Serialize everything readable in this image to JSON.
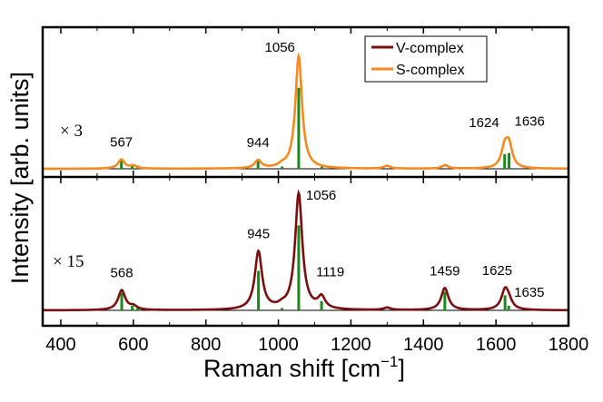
{
  "chart_data": {
    "type": "line",
    "xlabel_main": "Raman shift [cm",
    "xlabel_sup": "−1",
    "xlabel_close": "]",
    "ylabel": "Intensity [arb. units]",
    "xlim": [
      350,
      1800
    ],
    "x_ticks": [
      "400",
      "600",
      "800",
      "1000",
      "1200",
      "1400",
      "1600",
      "1800"
    ],
    "legend": {
      "position": "top-right",
      "entries": [
        {
          "name": "V-complex",
          "color": "#7b0f0f"
        },
        {
          "name": "S-complex",
          "color": "#f7891f"
        }
      ]
    },
    "stick_color": "#1a8a1a",
    "panels": [
      {
        "name": "S-complex",
        "color": "#f7891f",
        "scale_label": "× 3",
        "width": 11,
        "peaks": [
          {
            "x": 567,
            "height": 0.08
          },
          {
            "x": 600,
            "height": 0.025
          },
          {
            "x": 944,
            "height": 0.07
          },
          {
            "x": 1010,
            "height": 0.02
          },
          {
            "x": 1056,
            "height": 1.0
          },
          {
            "x": 1300,
            "height": 0.025
          },
          {
            "x": 1460,
            "height": 0.03
          },
          {
            "x": 1624,
            "height": 0.17
          },
          {
            "x": 1636,
            "height": 0.19
          }
        ],
        "sticks": [
          {
            "x": 567,
            "height": 0.09
          },
          {
            "x": 597,
            "height": 0.04
          },
          {
            "x": 612,
            "height": 0.03
          },
          {
            "x": 944,
            "height": 0.07
          },
          {
            "x": 1010,
            "height": 0.02
          },
          {
            "x": 1056,
            "height": 0.72
          },
          {
            "x": 1120,
            "height": 0.02
          },
          {
            "x": 1624,
            "height": 0.13
          },
          {
            "x": 1636,
            "height": 0.14
          }
        ],
        "labels": [
          {
            "x": 567,
            "text": "567"
          },
          {
            "x": 944,
            "text": "944"
          },
          {
            "x": 1056,
            "text": "1056"
          },
          {
            "x": 1624,
            "text": "1624"
          },
          {
            "x": 1636,
            "text": "1636"
          }
        ]
      },
      {
        "name": "V-complex",
        "color": "#7b0f0f",
        "scale_label": "× 15",
        "width": 12,
        "peaks": [
          {
            "x": 568,
            "height": 0.17
          },
          {
            "x": 600,
            "height": 0.03
          },
          {
            "x": 945,
            "height": 0.5
          },
          {
            "x": 1010,
            "height": 0.02
          },
          {
            "x": 1056,
            "height": 1.0
          },
          {
            "x": 1119,
            "height": 0.1
          },
          {
            "x": 1300,
            "height": 0.02
          },
          {
            "x": 1459,
            "height": 0.19
          },
          {
            "x": 1625,
            "height": 0.16
          },
          {
            "x": 1635,
            "height": 0.06
          }
        ],
        "sticks": [
          {
            "x": 568,
            "height": 0.15
          },
          {
            "x": 597,
            "height": 0.04
          },
          {
            "x": 612,
            "height": 0.02
          },
          {
            "x": 945,
            "height": 0.34
          },
          {
            "x": 1010,
            "height": 0.02
          },
          {
            "x": 1056,
            "height": 0.73
          },
          {
            "x": 1119,
            "height": 0.08
          },
          {
            "x": 1459,
            "height": 0.16
          },
          {
            "x": 1625,
            "height": 0.13
          },
          {
            "x": 1635,
            "height": 0.04
          }
        ],
        "labels": [
          {
            "x": 568,
            "text": "568"
          },
          {
            "x": 945,
            "text": "945"
          },
          {
            "x": 1056,
            "text": "1056"
          },
          {
            "x": 1119,
            "text": "1119"
          },
          {
            "x": 1459,
            "text": "1459"
          },
          {
            "x": 1625,
            "text": "1625"
          },
          {
            "x": 1635,
            "text": "1635"
          }
        ]
      }
    ]
  }
}
